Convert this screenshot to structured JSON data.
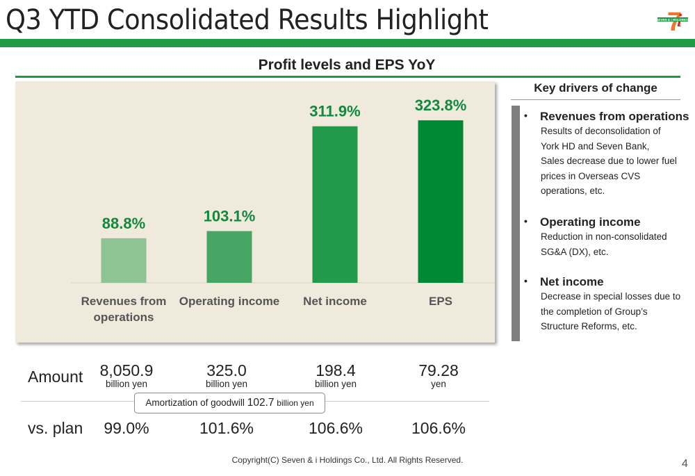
{
  "header": {
    "title": "Q3 YTD Consolidated Results Highlight",
    "logo_text": "SEVEN & i HOLDINGS",
    "logo_numeral": "7",
    "logo_letter": "i"
  },
  "colors": {
    "brand_green": "#1f9a45",
    "chart_bg": "#efeadb",
    "bar_1": "#90c393",
    "bar_2": "#48a665",
    "bar_3": "#22994b",
    "bar_4": "#008935",
    "label_green": "#0f8a3c"
  },
  "chart_data": {
    "type": "bar",
    "title": "Profit levels and EPS YoY",
    "categories": [
      "Revenues from operations",
      "Operating income",
      "Net income",
      "EPS"
    ],
    "category_lines": [
      [
        "Revenues from",
        "operations"
      ],
      [
        "Operating income"
      ],
      [
        "Net income"
      ],
      [
        "EPS"
      ]
    ],
    "values": [
      88.8,
      103.1,
      311.9,
      323.8
    ],
    "data_labels": [
      "88.8%",
      "103.1%",
      "311.9%",
      "323.8%"
    ],
    "ylim": [
      0,
      360
    ],
    "bar_colors": [
      "#90c393",
      "#48a665",
      "#22994b",
      "#008935"
    ],
    "xlabel": "",
    "ylabel": ""
  },
  "drivers": {
    "title": "Key drivers of change",
    "bullet": "•",
    "items": [
      {
        "heading": "Revenues from operations",
        "lines": [
          "Results of deconsolidation of",
          "York HD and Seven Bank,",
          "Sales decrease due to lower fuel",
          "prices in Overseas CVS",
          "operations, etc."
        ]
      },
      {
        "heading": "Operating income",
        "lines": [
          "Reduction in non-consolidated",
          "SG&A (DX), etc."
        ]
      },
      {
        "heading": "Net income",
        "lines": [
          "Decrease in special losses due to",
          "the completion of Group’s",
          "Structure Reforms, etc."
        ]
      }
    ]
  },
  "table": {
    "amount_label": "Amount",
    "plan_label": "vs. plan",
    "amounts": [
      {
        "value": "8,050.9",
        "unit": "billion yen"
      },
      {
        "value": "325.0",
        "unit": "billion yen"
      },
      {
        "value": "198.4",
        "unit": "billion yen"
      },
      {
        "value": "79.28",
        "unit": "yen"
      }
    ],
    "vs_plan": [
      "99.0%",
      "101.6%",
      "106.6%",
      "106.6%"
    ],
    "goodwill": {
      "prefix": "Amortization of goodwill",
      "value": "102.7",
      "unit": "billion yen"
    }
  },
  "footer": {
    "copyright": "Copyright(C) Seven & i Holdings Co., Ltd. All Rights Reserved.",
    "page_number": "4"
  }
}
